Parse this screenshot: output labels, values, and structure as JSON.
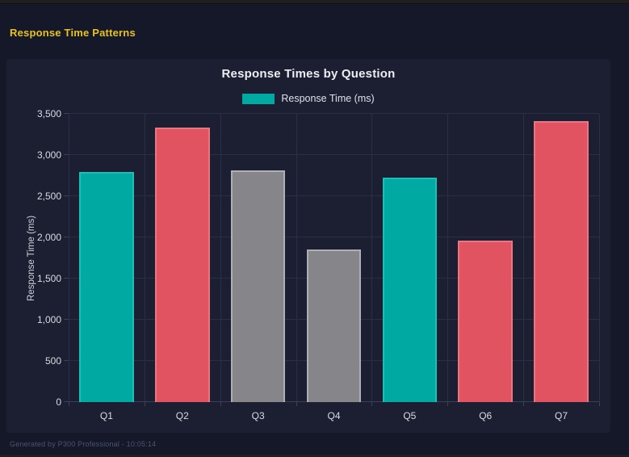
{
  "window": {
    "header_title": "Response Time Patterns",
    "footer": "Generated by P300 Professional - 10:05:14"
  },
  "colors": {
    "page_bg": "#151829",
    "panel_bg": "#1c1f32",
    "accent_yellow": "#e9c21f",
    "grid": "#2b2f45",
    "teal": "#00aaa3",
    "red": "#e25361",
    "gray": "#85858a"
  },
  "chart_data": {
    "type": "bar",
    "title": "Response Times by Question",
    "legend": [
      {
        "label": "Response Time (ms)",
        "color": "#00aaa3"
      }
    ],
    "legend_position": "top",
    "categories": [
      "Q1",
      "Q2",
      "Q3",
      "Q4",
      "Q5",
      "Q6",
      "Q7"
    ],
    "values": [
      2790,
      3330,
      2810,
      1850,
      2730,
      1960,
      3410
    ],
    "bar_colors": [
      "#00aaa3",
      "#e25361",
      "#85858a",
      "#85858a",
      "#00aaa3",
      "#e25361",
      "#e25361"
    ],
    "bar_border_colors": [
      "#1cbfb7",
      "#e97681",
      "#aeaeb4",
      "#aeaeb4",
      "#1cbfb7",
      "#e97681",
      "#e97681"
    ],
    "xlabel": "",
    "ylabel": "Response Time (ms)",
    "ylim": [
      0,
      3500
    ],
    "yticks": [
      0,
      500,
      1000,
      1500,
      2000,
      2500,
      3000,
      3500
    ],
    "grid": true
  }
}
